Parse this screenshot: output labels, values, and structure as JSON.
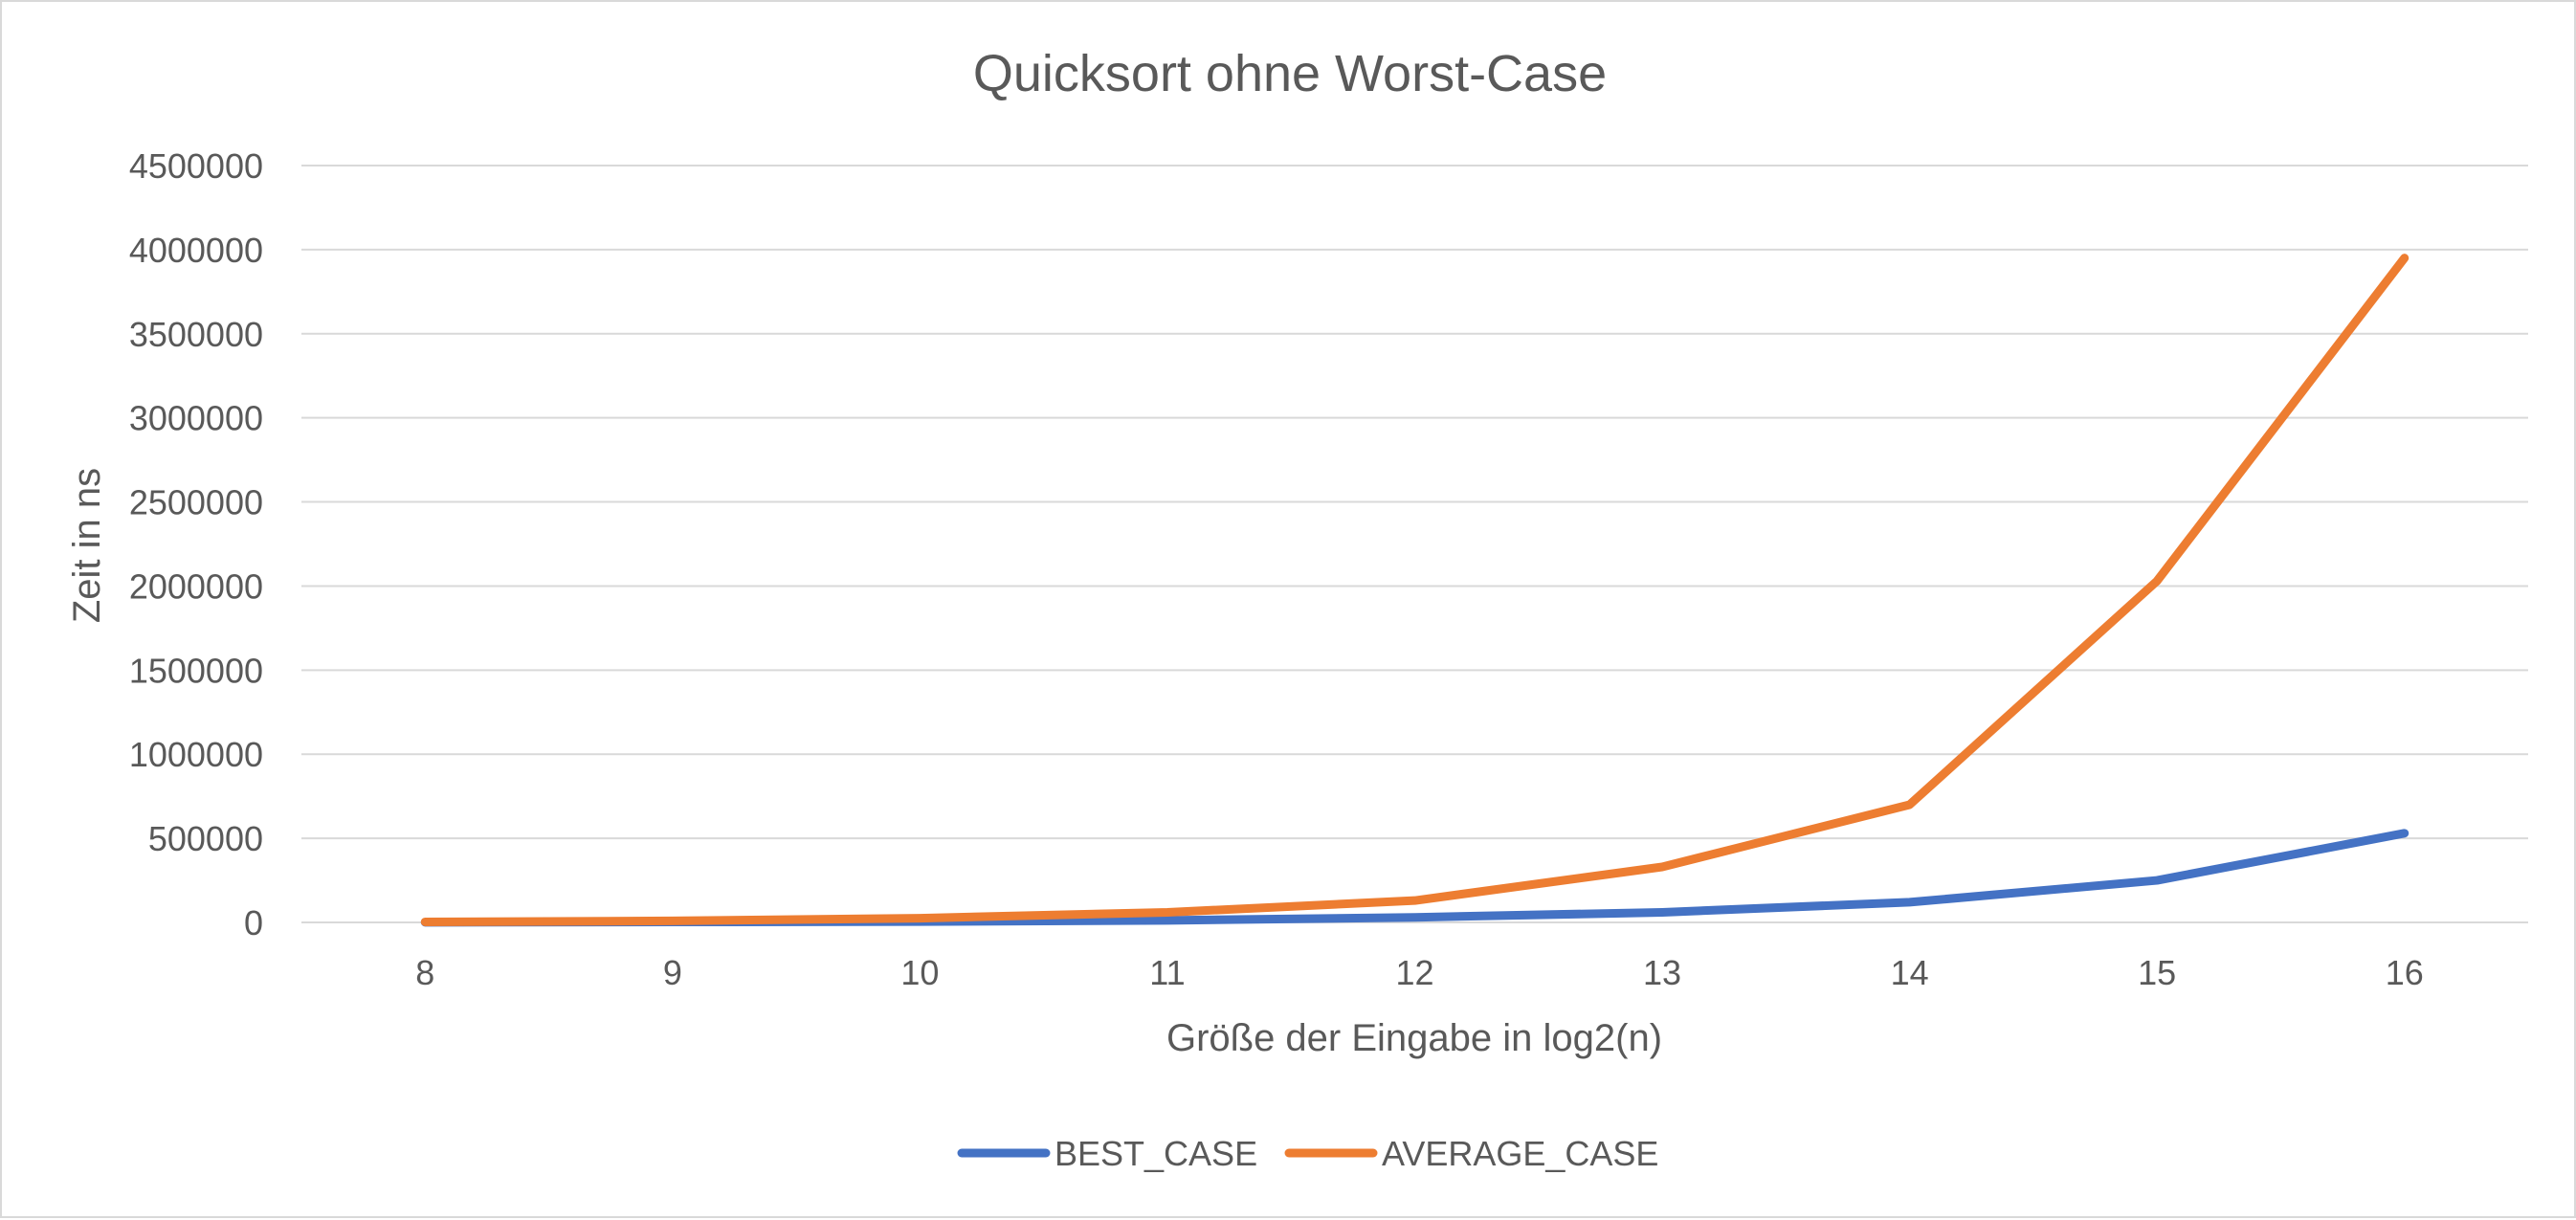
{
  "chart_data": {
    "type": "line",
    "title": "Quicksort ohne Worst-Case",
    "xlabel": "Größe der Eingabe in log2(n)",
    "ylabel": "Zeit in ns",
    "x": [
      8,
      9,
      10,
      11,
      12,
      13,
      14,
      15,
      16
    ],
    "ylim": [
      0,
      4500000
    ],
    "yticks": [
      0,
      500000,
      1000000,
      1500000,
      2000000,
      2500000,
      3000000,
      3500000,
      4000000,
      4500000
    ],
    "grid": true,
    "legend_position": "bottom",
    "series": [
      {
        "name": "BEST_CASE",
        "color": "#4472c4",
        "values": [
          1000,
          2500,
          5000,
          12000,
          30000,
          60000,
          120000,
          250000,
          530000
        ]
      },
      {
        "name": "AVERAGE_CASE",
        "color": "#ed7d31",
        "values": [
          3000,
          9000,
          25000,
          60000,
          130000,
          330000,
          700000,
          2030000,
          3950000
        ]
      }
    ]
  }
}
